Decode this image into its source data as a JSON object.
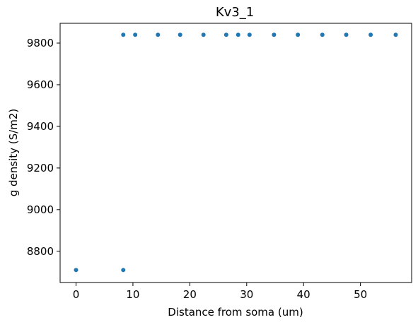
{
  "chart_data": {
    "type": "scatter",
    "title": "Kv3_1",
    "xlabel": "Distance from soma (um)",
    "ylabel": "g density (S/m2)",
    "xlim": [
      -2.8,
      59.0
    ],
    "ylim": [
      8650,
      9895
    ],
    "xticks": [
      0,
      10,
      20,
      30,
      40,
      50
    ],
    "yticks": [
      8800,
      9000,
      9200,
      9400,
      9600,
      9800
    ],
    "grid": false,
    "marker_color": "#1f77b4",
    "series": [
      {
        "x": [
          0,
          8.3,
          8.3,
          10.4,
          14.4,
          18.3,
          22.4,
          26.4,
          28.5,
          30.5,
          34.8,
          39.0,
          43.3,
          47.5,
          51.8,
          56.2
        ],
        "y": [
          8710,
          8710,
          9840,
          9840,
          9840,
          9840,
          9840,
          9840,
          9840,
          9840,
          9840,
          9840,
          9840,
          9840,
          9840,
          9840
        ]
      }
    ]
  }
}
